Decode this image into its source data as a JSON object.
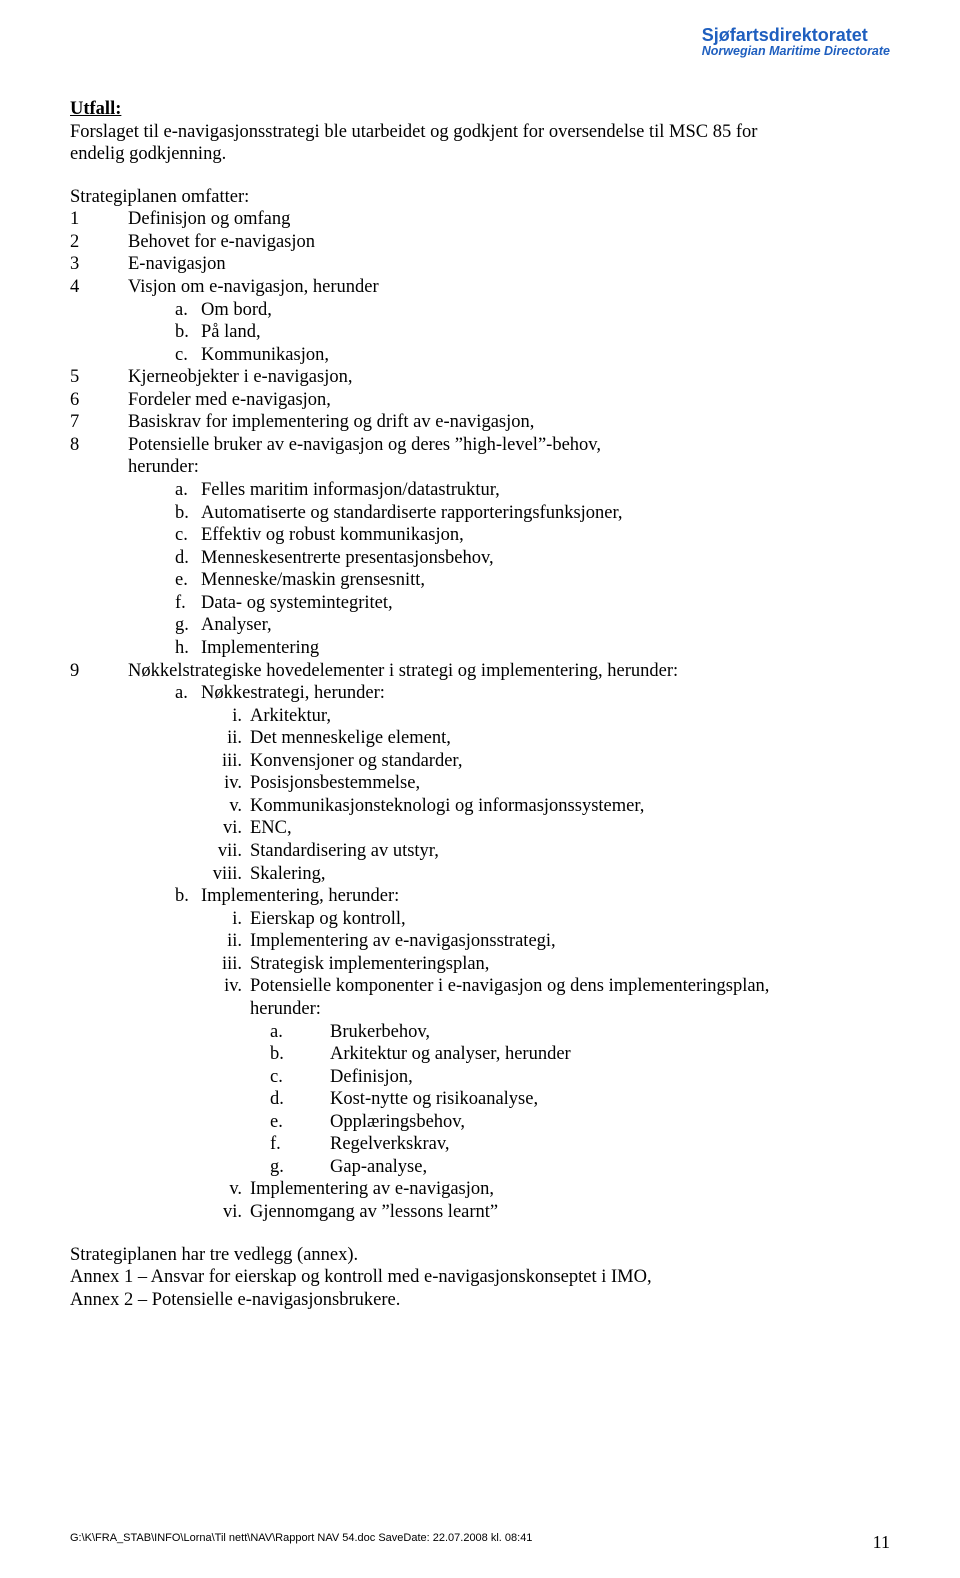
{
  "header": {
    "title": "Sjøfartsdirektoratet",
    "subtitle": "Norwegian Maritime Directorate",
    "color": "#1f5fbf"
  },
  "utfall": {
    "label": "Utfall:",
    "line1": "Forslaget til e-navigasjonsstrategi ble utarbeidet og godkjent for oversendelse til MSC 85 for",
    "line2": "endelig godkjenning."
  },
  "intro": "Strategiplanen omfatter:",
  "items": {
    "n1": "Definisjon og omfang",
    "n2": "Behovet for e-navigasjon",
    "n3": "E-navigasjon",
    "n4": "Visjon om e-navigasjon, herunder",
    "n4a": "Om bord,",
    "n4b": "På land,",
    "n4c": "Kommunikasjon,",
    "n5": "Kjerneobjekter i e-navigasjon,",
    "n6": "Fordeler med e-navigasjon,",
    "n7": "Basiskrav for implementering og drift av e-navigasjon,",
    "n8l1": "Potensielle bruker av e-navigasjon og deres ”high-level”-behov,",
    "n8l2": "herunder:",
    "n8a": "Felles maritim informasjon/datastruktur,",
    "n8b": "Automatiserte og standardiserte rapporteringsfunksjoner,",
    "n8c": "Effektiv og robust kommunikasjon,",
    "n8d": "Menneskesentrerte presentasjonsbehov,",
    "n8e": "Menneske/maskin grensesnitt,",
    "n8f": "Data- og systemintegritet,",
    "n8g": "Analyser,",
    "n8h": "Implementering",
    "n9": "Nøkkelstrategiske hovedelementer i strategi og implementering, herunder:",
    "n9a": "Nøkkestrategi, herunder:",
    "r1": "Arkitektur,",
    "r2": "Det menneskelige element,",
    "r3": "Konvensjoner og standarder,",
    "r4": "Posisjonsbestemmelse,",
    "r5": "Kommunikasjonsteknologi og informasjonssystemer,",
    "r6": "ENC,",
    "r7": "Standardisering av utstyr,",
    "r8": "Skalering,",
    "n9b": "Implementering, herunder:",
    "b1": "Eierskap og kontroll,",
    "b2": "Implementering av e-navigasjonsstrategi,",
    "b3": "Strategisk implementeringsplan,",
    "b4l1": "Potensielle komponenter i e-navigasjon og dens implementeringsplan,",
    "b4l2": "herunder:",
    "d_a": "Brukerbehov,",
    "d_b": "Arkitektur og analyser, herunder",
    "d_c": "Definisjon,",
    "d_d": "Kost-nytte og risikoanalyse,",
    "d_e": "Opplæringsbehov,",
    "d_f": "Regelverkskrav,",
    "d_g": "Gap-analyse,",
    "b5": "Implementering av e-navigasjon,",
    "b6": "Gjennomgang av ”lessons learnt”"
  },
  "closing": {
    "p1": "Strategiplanen har tre vedlegg (annex).",
    "p2": "Annex 1 – Ansvar for eierskap og kontroll med e-navigasjonskonseptet i IMO,",
    "p3": "Annex 2 – Potensielle e-navigasjonsbrukere."
  },
  "footer": {
    "path": "G:\\K\\FRA_STAB\\INFO\\Lorna\\Til nett\\NAV\\Rapport NAV 54.doc  SaveDate: 22.07.2008 kl. 08:41",
    "page": "11"
  }
}
